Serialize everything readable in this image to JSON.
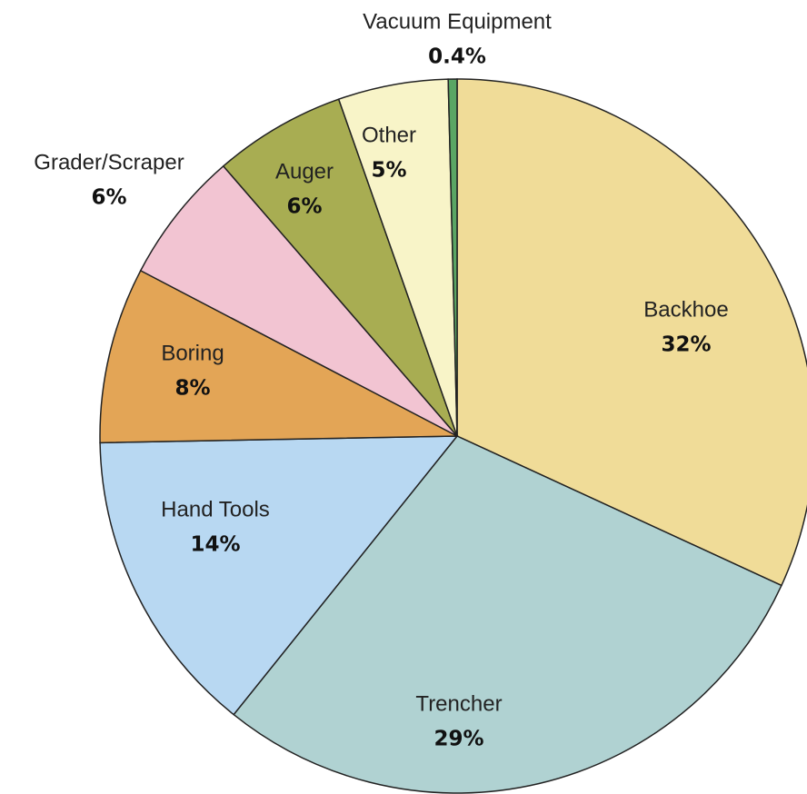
{
  "chart_data": {
    "type": "pie",
    "categories": [
      "Backhoe",
      "Trencher",
      "Hand Tools",
      "Boring",
      "Grader/Scraper",
      "Auger",
      "Other",
      "Vacuum Equipment"
    ],
    "values": [
      32,
      29,
      14,
      8,
      6,
      6,
      5,
      0.4
    ],
    "value_labels": [
      "32%",
      "29%",
      "14%",
      "8%",
      "6%",
      "6%",
      "5%",
      "0.4%"
    ],
    "colors": [
      "#f0dc98",
      "#b0d2d2",
      "#b8d8f2",
      "#e3a556",
      "#f2c4d2",
      "#a8ad52",
      "#f8f4c8",
      "#5aa664"
    ]
  }
}
